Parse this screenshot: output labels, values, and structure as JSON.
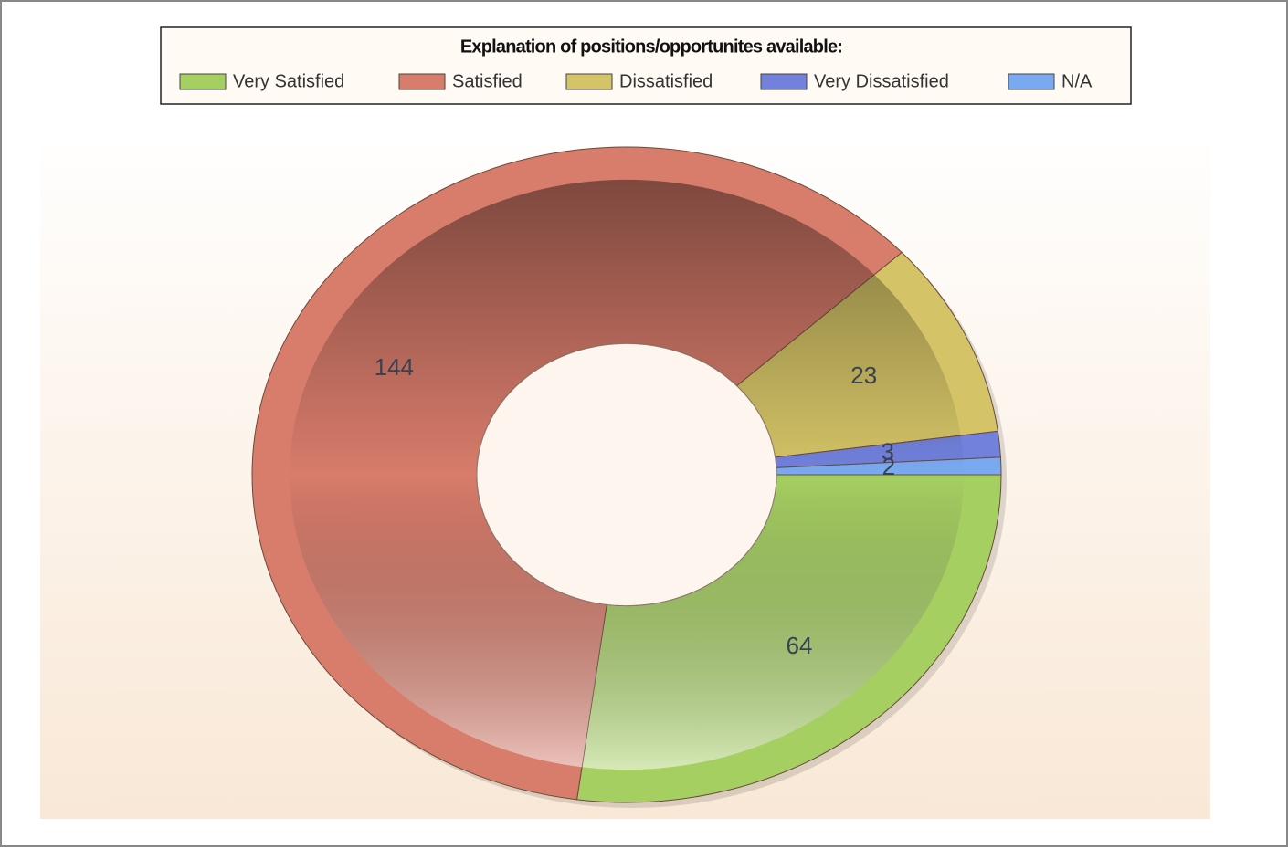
{
  "chart_data": {
    "type": "donut",
    "title": "Explanation of positions/opportunites available:",
    "categories": [
      "Very Satisfied",
      "Satisfied",
      "Dissatisfied",
      "Very Dissatisfied",
      "N/A"
    ],
    "values": [
      64,
      144,
      23,
      3,
      2
    ],
    "colors": [
      "#a6cf62",
      "#d87c6b",
      "#d4c467",
      "#7181dc",
      "#79a9f1"
    ],
    "legend": "top"
  }
}
